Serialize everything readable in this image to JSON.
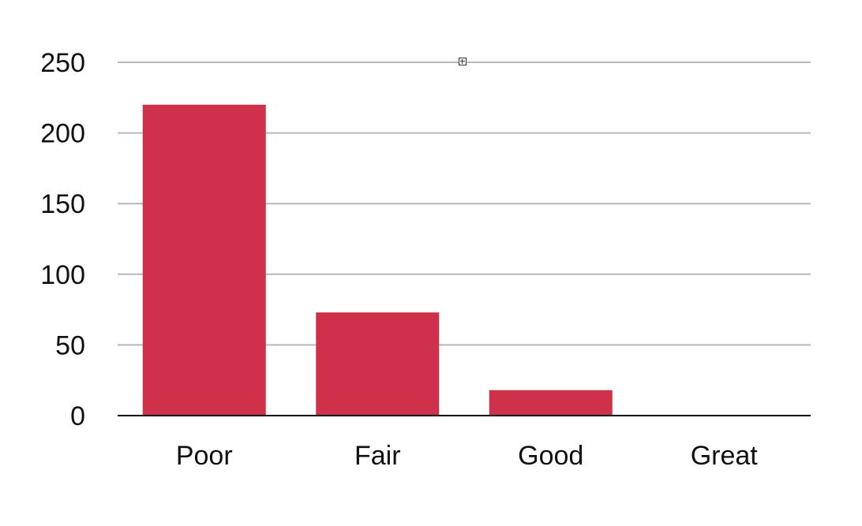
{
  "chart_data": {
    "type": "bar",
    "categories": [
      "Poor",
      "Fair",
      "Good",
      "Great"
    ],
    "values": [
      220,
      73,
      18,
      0.5
    ],
    "title": "",
    "xlabel": "",
    "ylabel": "",
    "ylim": [
      0,
      250
    ],
    "yticks": [
      0,
      50,
      100,
      150,
      200,
      250
    ],
    "ytick_labels": [
      "0",
      "50",
      "100",
      "150",
      "200",
      "250"
    ],
    "grid": true,
    "legend": "none",
    "bar_color": "#cf314a",
    "grid_color": "#b8b8b8",
    "axis_color": "#000000"
  },
  "ui": {
    "handle_icon": "move-handle-icon"
  }
}
